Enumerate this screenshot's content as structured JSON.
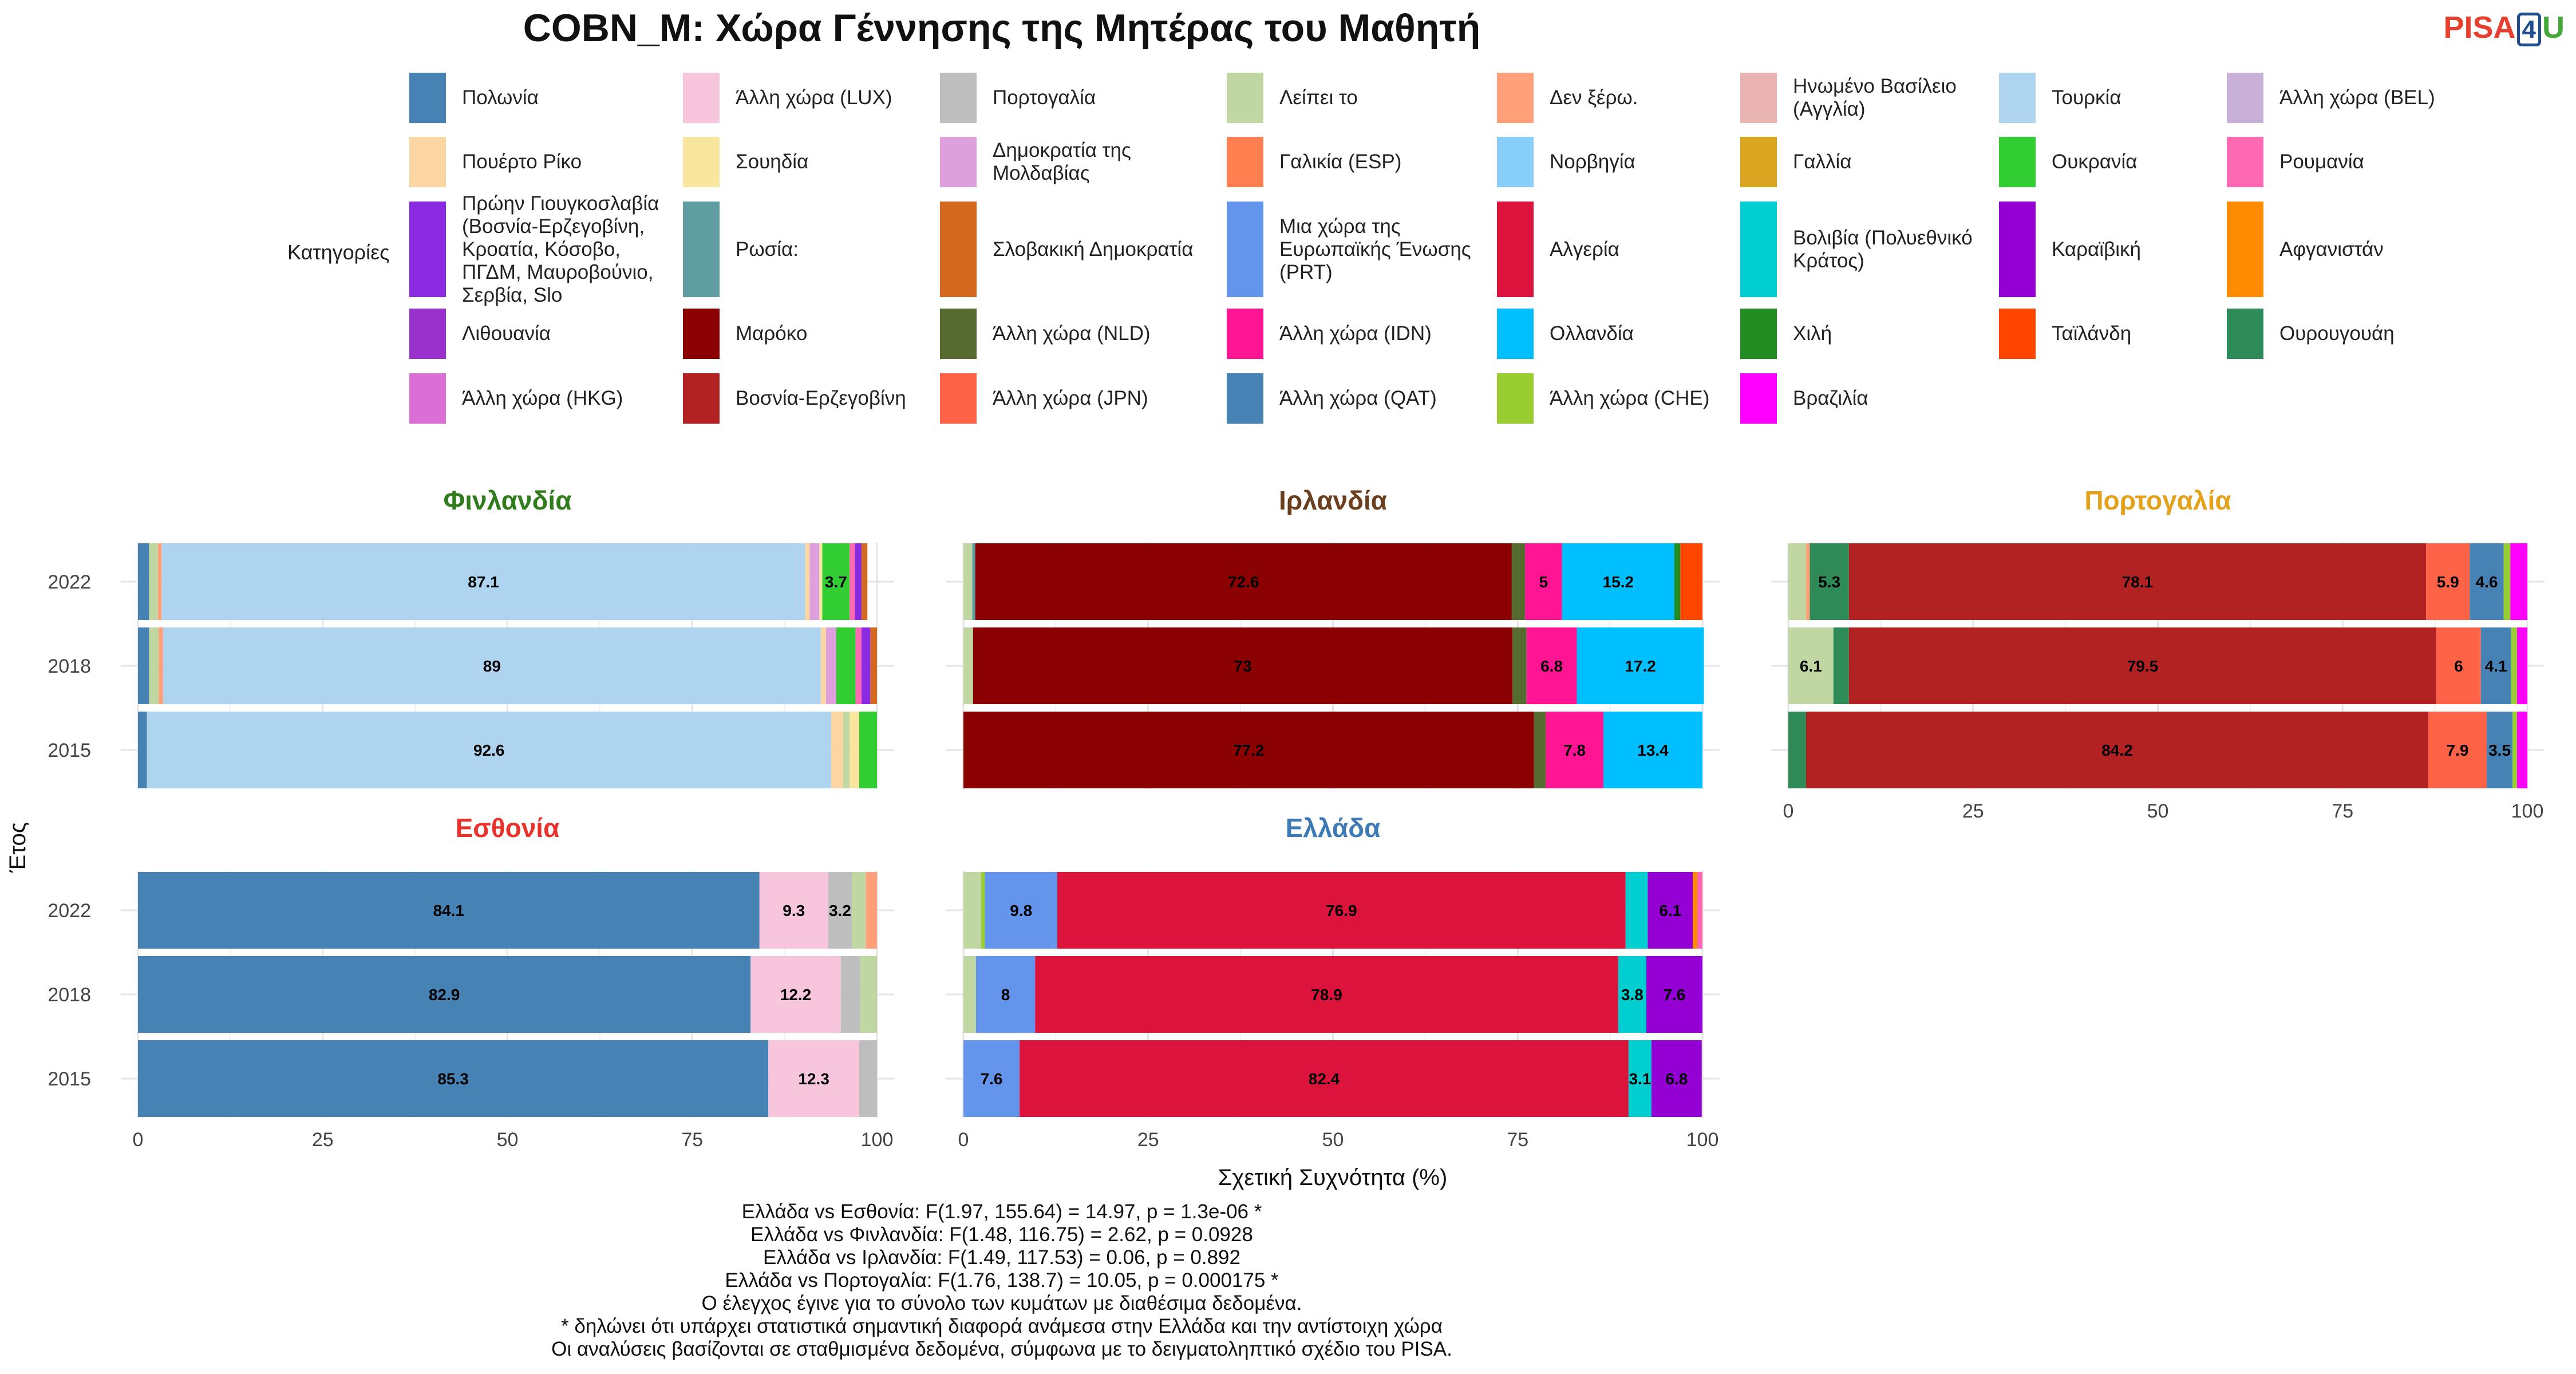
{
  "title": "COBN_M: Χώρα Γέννησης της Μητέρας του Μαθητή",
  "logo": {
    "part1": "PISA",
    "part2": "4",
    "part3": "U"
  },
  "chart_data": {
    "type": "bar",
    "orientation": "horizontal-stacked",
    "title": "COBN_M: Χώρα Γέννησης της Μητέρας του Μαθητή",
    "xlabel": "Σχετική Συχνότητα (%)",
    "ylabel": "Έτος",
    "xlim": [
      0,
      100
    ],
    "xticks": [
      "0",
      "25",
      "50",
      "75",
      "100"
    ],
    "years": [
      "2022",
      "2018",
      "2015"
    ],
    "legend_title": "Κατηγορίες",
    "legend_position": "top",
    "grid": true,
    "categories": [
      {
        "name": "Πολωνία",
        "color": "#4682b4"
      },
      {
        "name": "Άλλη χώρα (LUX)",
        "color": "#f7c6dd"
      },
      {
        "name": "Πορτογαλία",
        "color": "#bebebe"
      },
      {
        "name": "Λείπει το",
        "color": "#c1d7a2"
      },
      {
        "name": "Δεν ξέρω.",
        "color": "#ffa07a"
      },
      {
        "name": "Ηνωμένο Βασίλειο (Αγγλία)",
        "color": "#e8b3b0"
      },
      {
        "name": "Τουρκία",
        "color": "#afd4f0"
      },
      {
        "name": "Άλλη χώρα (BEL)",
        "color": "#c8b0d8"
      },
      {
        "name": "Πουέρτο Ρίκο",
        "color": "#fcd6a2"
      },
      {
        "name": "Σουηδία",
        "color": "#f8e59e"
      },
      {
        "name": "Δημοκρατία της Μολδαβίας",
        "color": "#dda0dd"
      },
      {
        "name": "Γαλικία (ESP)",
        "color": "#ff7f50"
      },
      {
        "name": "Νορβηγία",
        "color": "#87cefa"
      },
      {
        "name": "Γαλλία",
        "color": "#daa520"
      },
      {
        "name": "Ουκρανία",
        "color": "#32cd32"
      },
      {
        "name": "Ρουμανία",
        "color": "#ff69b4"
      },
      {
        "name": "Πρώην Γιουγκοσλαβία (Βοσνία-Ερζεγοβίνη, Κροατία, Κόσοβο, ΠΓΔΜ, Μαυροβούνιο, Σερβία, Slo",
        "color": "#8a2be2"
      },
      {
        "name": "Ρωσία:",
        "color": "#5f9ea0"
      },
      {
        "name": "Σλοβακική Δημοκρατία",
        "color": "#d2691e"
      },
      {
        "name": "Μια χώρα της Ευρωπαϊκής Ένωσης (PRT)",
        "color": "#6495ed"
      },
      {
        "name": "Αλγερία",
        "color": "#dc143c"
      },
      {
        "name": "Βολιβία (Πολυεθνικό Κράτος)",
        "color": "#00ced1"
      },
      {
        "name": "Καραϊβική",
        "color": "#9400d3"
      },
      {
        "name": "Αφγανιστάν",
        "color": "#ff8c00"
      },
      {
        "name": "Λιθουανία",
        "color": "#9932cc"
      },
      {
        "name": "Μαρόκο",
        "color": "#8b0000"
      },
      {
        "name": "Άλλη χώρα (NLD)",
        "color": "#556b2f"
      },
      {
        "name": "Άλλη χώρα (IDN)",
        "color": "#ff1493"
      },
      {
        "name": "Ολλανδία",
        "color": "#00bfff"
      },
      {
        "name": "Χιλή",
        "color": "#228b22"
      },
      {
        "name": "Ταϊλάνδη",
        "color": "#ff4500"
      },
      {
        "name": "Ουρουγουάη",
        "color": "#2e8b57"
      },
      {
        "name": "Άλλη χώρα (HKG)",
        "color": "#da70d6"
      },
      {
        "name": "Βοσνία-Ερζεγοβίνη",
        "color": "#b22222"
      },
      {
        "name": "Άλλη χώρα (JPN)",
        "color": "#ff6347"
      },
      {
        "name": "Άλλη χώρα (QAT)",
        "color": "#4682b4"
      },
      {
        "name": "Άλλη χώρα (CHE)",
        "color": "#9acd32"
      },
      {
        "name": "Βραζιλία",
        "color": "#ff00ff"
      }
    ],
    "panels": [
      {
        "name": "Φινλανδία",
        "title_color": "#2e7d1a",
        "years": {
          "2022": [
            [
              "Πολωνία",
              1.5
            ],
            [
              "Λείπει το",
              1.2
            ],
            [
              "Δεν ξέρω.",
              0.5
            ],
            [
              "Τουρκία",
              87.1
            ],
            [
              "Πουέρτο Ρίκο",
              0.6
            ],
            [
              "Δημοκρατία της Μολδαβίας",
              1.3
            ],
            [
              "Σουηδία",
              0.4
            ],
            [
              "Ουκρανία",
              3.7
            ],
            [
              "Ρουμανία",
              0.7
            ],
            [
              "Πρώην Γιουγκοσλαβία (Βοσνία-Ερζεγοβίνη, Κροατία, Κόσοβο, ΠΓΔΜ, Μαυροβούνιο, Σερβία, Slo",
              0.9
            ],
            [
              "Σλοβακική Δημοκρατία",
              0.8
            ]
          ],
          "2018": [
            [
              "Πολωνία",
              1.5
            ],
            [
              "Λείπει το",
              1.3
            ],
            [
              "Δεν ξέρω.",
              0.6
            ],
            [
              "Τουρκία",
              89
            ],
            [
              "Πουέρτο Ρίκο",
              0.7
            ],
            [
              "Δημοκρατία της Μολδαβίας",
              1.4
            ],
            [
              "Ουκρανία",
              2.6
            ],
            [
              "Ρουμανία",
              0.8
            ],
            [
              "Πρώην Γιουγκοσλαβία (Βοσνία-Ερζεγοβίνη, Κροατία, Κόσοβο, ΠΓΔΜ, Μαυροβούνιο, Σερβία, Slo",
              1.2
            ],
            [
              "Σλοβακική Δημοκρατία",
              0.9
            ]
          ],
          "2015": [
            [
              "Πολωνία",
              1.2
            ],
            [
              "Τουρκία",
              92.6
            ],
            [
              "Πουέρτο Ρίκο",
              1.6
            ],
            [
              "Λείπει το",
              0.9
            ],
            [
              "Σουηδία",
              1.3
            ],
            [
              "Ουκρανία",
              2.4
            ]
          ]
        },
        "labels": {
          "2022": [
            [
              3,
              "87.1"
            ],
            [
              7,
              "3.7"
            ]
          ],
          "2018": [
            [
              3,
              "89"
            ]
          ],
          "2015": [
            [
              1,
              "92.6"
            ]
          ]
        }
      },
      {
        "name": "Ιρλανδία",
        "title_color": "#6b3f1d",
        "years": {
          "2022": [
            [
              "Λείπει το",
              1.2
            ],
            [
              "Ρωσία:",
              0.4
            ],
            [
              "Μαρόκο",
              72.6
            ],
            [
              "Άλλη χώρα (NLD)",
              1.8
            ],
            [
              "Άλλη χώρα (IDN)",
              5
            ],
            [
              "Ολλανδία",
              15.2
            ],
            [
              "Χιλή",
              0.8
            ],
            [
              "Ταϊλάνδη",
              3
            ]
          ],
          "2018": [
            [
              "Λείπει το",
              1.3
            ],
            [
              "Μαρόκο",
              73
            ],
            [
              "Άλλη χώρα (NLD)",
              1.9
            ],
            [
              "Άλλη χώρα (IDN)",
              6.8
            ],
            [
              "Ολλανδία",
              17.2
            ]
          ],
          "2015": [
            [
              "Μαρόκο",
              77.2
            ],
            [
              "Άλλη χώρα (NLD)",
              1.6
            ],
            [
              "Άλλη χώρα (IDN)",
              7.8
            ],
            [
              "Ολλανδία",
              13.4
            ]
          ]
        },
        "labels": {
          "2022": [
            [
              2,
              "72.6"
            ],
            [
              4,
              "5"
            ],
            [
              5,
              "15.2"
            ]
          ],
          "2018": [
            [
              1,
              "73"
            ],
            [
              3,
              "6.8"
            ],
            [
              4,
              "17.2"
            ]
          ],
          "2015": [
            [
              0,
              "77.2"
            ],
            [
              2,
              "7.8"
            ],
            [
              3,
              "13.4"
            ]
          ]
        }
      },
      {
        "name": "Πορτογαλία",
        "title_color": "#e3a21a",
        "years": {
          "2022": [
            [
              "Λείπει το",
              2.4
            ],
            [
              "Δεν ξέρω.",
              0.5
            ],
            [
              "Ουρουγουάη",
              5.3
            ],
            [
              "Βοσνία-Ερζεγοβίνη",
              78.1
            ],
            [
              "Άλλη χώρα (JPN)",
              5.9
            ],
            [
              "Άλλη χώρα (QAT)",
              4.6
            ],
            [
              "Άλλη χώρα (CHE)",
              0.9
            ],
            [
              "Βραζιλία",
              2.3
            ]
          ],
          "2018": [
            [
              "Λείπει το",
              6.1
            ],
            [
              "Ουρουγουάη",
              2.1
            ],
            [
              "Βοσνία-Ερζεγοβίνη",
              79.5
            ],
            [
              "Άλλη χώρα (JPN)",
              6
            ],
            [
              "Άλλη χώρα (QAT)",
              4.1
            ],
            [
              "Άλλη χώρα (CHE)",
              0.8
            ],
            [
              "Βραζιλία",
              1.4
            ]
          ],
          "2015": [
            [
              "Ουρουγουάη",
              2.4
            ],
            [
              "Βοσνία-Ερζεγοβίνη",
              84.2
            ],
            [
              "Άλλη χώρα (JPN)",
              7.9
            ],
            [
              "Άλλη χώρα (QAT)",
              3.5
            ],
            [
              "Άλλη χώρα (CHE)",
              0.6
            ],
            [
              "Βραζιλία",
              1.4
            ]
          ]
        },
        "labels": {
          "2022": [
            [
              2,
              "5.3"
            ],
            [
              3,
              "78.1"
            ],
            [
              4,
              "5.9"
            ],
            [
              5,
              "4.6"
            ]
          ],
          "2018": [
            [
              0,
              "6.1"
            ],
            [
              2,
              "79.5"
            ],
            [
              3,
              "6"
            ],
            [
              4,
              "4.1"
            ]
          ],
          "2015": [
            [
              1,
              "84.2"
            ],
            [
              2,
              "7.9"
            ],
            [
              3,
              "3.5"
            ]
          ]
        }
      },
      {
        "name": "Εσθονία",
        "title_color": "#e8322a",
        "years": {
          "2022": [
            [
              "Πολωνία",
              84.1
            ],
            [
              "Άλλη χώρα (LUX)",
              9.3
            ],
            [
              "Πορτογαλία",
              3.2
            ],
            [
              "Λείπει το",
              1.9
            ],
            [
              "Δεν ξέρω.",
              1.5
            ]
          ],
          "2018": [
            [
              "Πολωνία",
              82.9
            ],
            [
              "Άλλη χώρα (LUX)",
              12.2
            ],
            [
              "Πορτογαλία",
              2.6
            ],
            [
              "Λείπει το",
              2.3
            ]
          ],
          "2015": [
            [
              "Πολωνία",
              85.3
            ],
            [
              "Άλλη χώρα (LUX)",
              12.3
            ],
            [
              "Πορτογαλία",
              2.4
            ]
          ]
        },
        "labels": {
          "2022": [
            [
              0,
              "84.1"
            ],
            [
              1,
              "9.3"
            ],
            [
              2,
              "3.2"
            ]
          ],
          "2018": [
            [
              0,
              "82.9"
            ],
            [
              1,
              "12.2"
            ]
          ],
          "2015": [
            [
              0,
              "85.3"
            ],
            [
              1,
              "12.3"
            ]
          ]
        }
      },
      {
        "name": "Ελλάδα",
        "title_color": "#3d7ab8",
        "years": {
          "2022": [
            [
              "Λείπει το",
              2.4
            ],
            [
              "Άλλη χώρα (CHE)",
              0.5
            ],
            [
              "Μια χώρα της Ευρωπαϊκής Ένωσης (PRT)",
              9.8
            ],
            [
              "Αλγερία",
              76.9
            ],
            [
              "Βολιβία (Πολυεθνικό Κράτος)",
              3
            ],
            [
              "Καραϊβική",
              6.1
            ],
            [
              "Αφγανιστάν",
              0.6
            ],
            [
              "Ρουμανία",
              0.7
            ]
          ],
          "2018": [
            [
              "Λείπει το",
              1.7
            ],
            [
              "Μια χώρα της Ευρωπαϊκής Ένωσης (PRT)",
              8
            ],
            [
              "Αλγερία",
              78.9
            ],
            [
              "Βολιβία (Πολυεθνικό Κράτος)",
              3.8
            ],
            [
              "Καραϊβική",
              7.6
            ]
          ],
          "2015": [
            [
              "Μια χώρα της Ευρωπαϊκής Ένωσης (PRT)",
              7.6
            ],
            [
              "Αλγερία",
              82.4
            ],
            [
              "Βολιβία (Πολυεθνικό Κράτος)",
              3.1
            ],
            [
              "Καραϊβική",
              6.8
            ]
          ]
        },
        "labels": {
          "2022": [
            [
              2,
              "9.8"
            ],
            [
              3,
              "76.9"
            ],
            [
              5,
              "6.1"
            ]
          ],
          "2018": [
            [
              1,
              "8"
            ],
            [
              2,
              "78.9"
            ],
            [
              3,
              "3.8"
            ],
            [
              4,
              "7.6"
            ]
          ],
          "2015": [
            [
              0,
              "7.6"
            ],
            [
              1,
              "82.4"
            ],
            [
              2,
              "3.1"
            ],
            [
              3,
              "6.8"
            ]
          ]
        }
      }
    ]
  },
  "footer": [
    "Ελλάδα vs Εσθονία: F(1.97, 155.64) = 14.97, p = 1.3e-06 *",
    "Ελλάδα vs Φινλανδία: F(1.48, 116.75) = 2.62, p = 0.0928",
    "Ελλάδα vs Ιρλανδία: F(1.49, 117.53) = 0.06, p = 0.892",
    "Ελλάδα vs Πορτογαλία: F(1.76, 138.7) = 10.05, p = 0.000175 *",
    "Ο έλεγχος έγινε για το σύνολο των κυμάτων με διαθέσιμα δεδομένα.",
    "* δηλώνει ότι υπάρχει στατιστικά σημαντική διαφορά ανάμεσα στην Ελλάδα και την αντίστοιχη χώρα",
    "Οι αναλύσεις βασίζονται σε σταθμισμένα δεδομένα, σύμφωνα με το δειγματοληπτικό σχέδιο του PISA."
  ]
}
